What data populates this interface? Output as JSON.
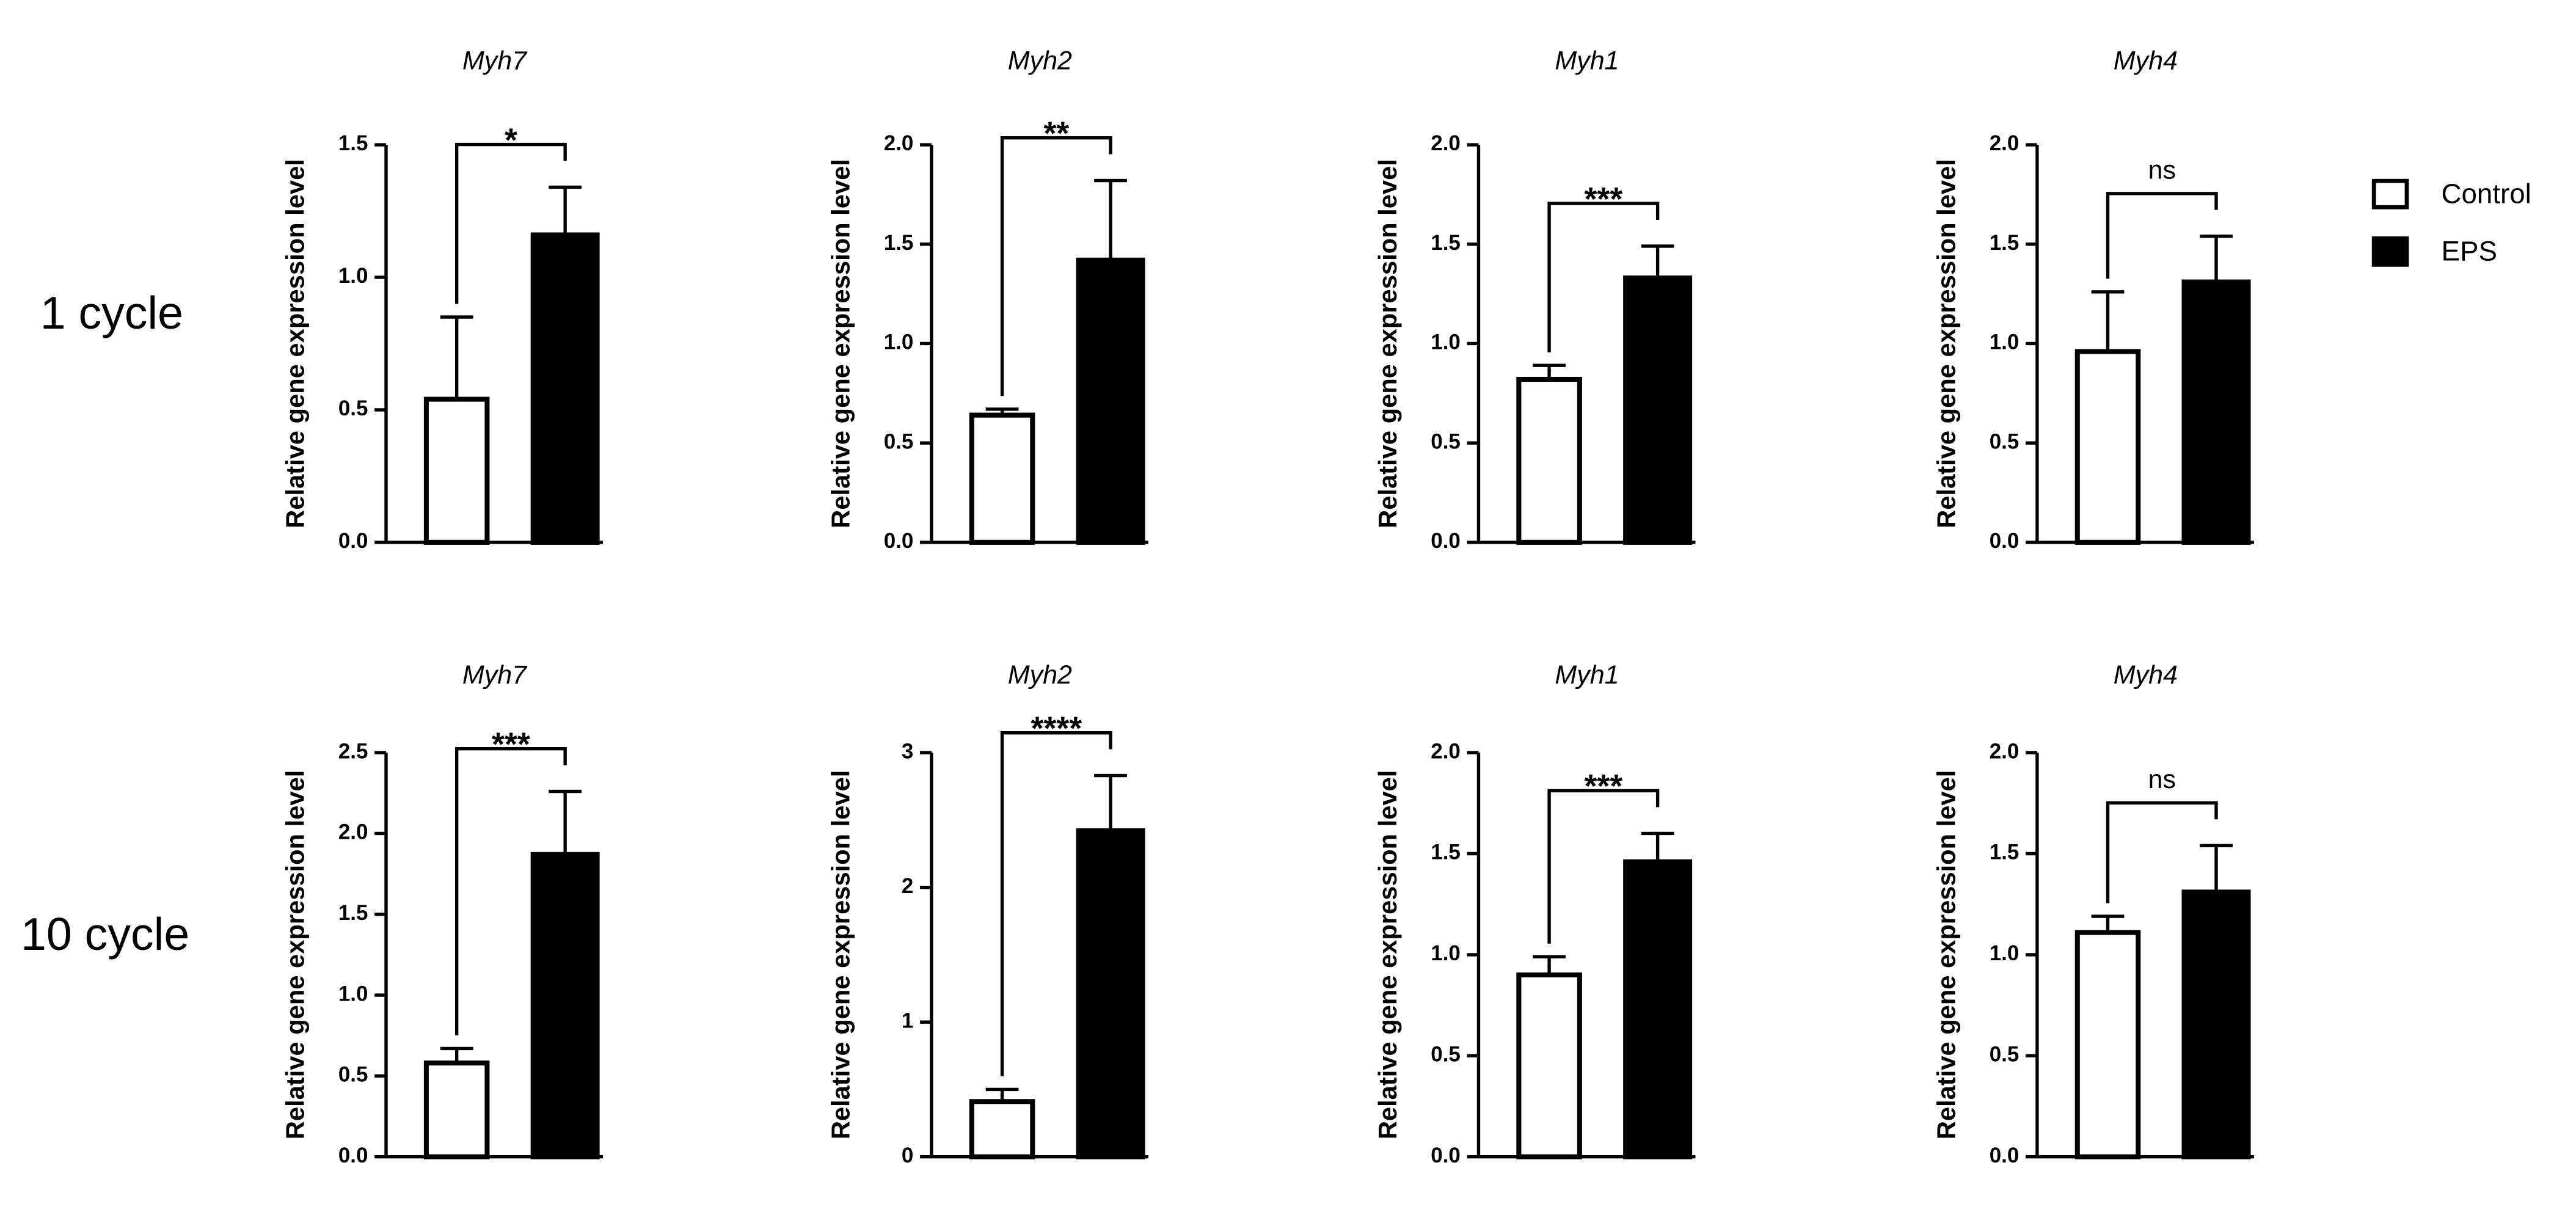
{
  "row_labels": [
    "1 cycle",
    "10 cycle"
  ],
  "chart_data": [
    {
      "type": "bar",
      "title": "Myh7",
      "ylabel": "Relative gene expression level",
      "annotation": "*",
      "ylim": [
        0,
        1.5
      ],
      "yticks": [
        {
          "value": 0,
          "label": "0.0"
        },
        {
          "value": 0.5,
          "label": "0.5"
        },
        {
          "value": 1,
          "label": "1.0"
        },
        {
          "value": 1.5,
          "label": "1.5"
        }
      ],
      "series": [
        {
          "name": "Control",
          "color": "#ffffff",
          "values": [
            0.54
          ],
          "errors": [
            0.31
          ]
        },
        {
          "name": "EPS",
          "color": "#000000",
          "values": [
            1.16
          ],
          "errors": [
            0.18
          ]
        }
      ]
    },
    {
      "type": "bar",
      "title": "Myh2",
      "ylabel": "Relative gene expression level",
      "annotation": "**",
      "ylim": [
        0,
        2
      ],
      "yticks": [
        {
          "value": 0,
          "label": "0.0"
        },
        {
          "value": 0.5,
          "label": "0.5"
        },
        {
          "value": 1,
          "label": "1.0"
        },
        {
          "value": 1.5,
          "label": "1.5"
        },
        {
          "value": 2,
          "label": "2.0"
        }
      ],
      "series": [
        {
          "name": "Control",
          "color": "#ffffff",
          "values": [
            0.64
          ],
          "errors": [
            0.03
          ]
        },
        {
          "name": "EPS",
          "color": "#000000",
          "values": [
            1.42
          ],
          "errors": [
            0.4
          ]
        }
      ]
    },
    {
      "type": "bar",
      "title": "Myh1",
      "ylabel": "Relative gene expression level",
      "annotation": "***",
      "ylim": [
        0,
        2
      ],
      "yticks": [
        {
          "value": 0,
          "label": "0.0"
        },
        {
          "value": 0.5,
          "label": "0.5"
        },
        {
          "value": 1,
          "label": "1.0"
        },
        {
          "value": 1.5,
          "label": "1.5"
        },
        {
          "value": 2,
          "label": "2.0"
        }
      ],
      "series": [
        {
          "name": "Control",
          "color": "#ffffff",
          "values": [
            0.82
          ],
          "errors": [
            0.07
          ]
        },
        {
          "name": "EPS",
          "color": "#000000",
          "values": [
            1.33
          ],
          "errors": [
            0.16
          ]
        }
      ]
    },
    {
      "type": "bar",
      "title": "Myh4",
      "ylabel": "Relative gene expression level",
      "annotation": "ns",
      "ylim": [
        0,
        2
      ],
      "yticks": [
        {
          "value": 0,
          "label": "0.0"
        },
        {
          "value": 0.5,
          "label": "0.5"
        },
        {
          "value": 1,
          "label": "1.0"
        },
        {
          "value": 1.5,
          "label": "1.5"
        },
        {
          "value": 2,
          "label": "2.0"
        }
      ],
      "series": [
        {
          "name": "Control",
          "color": "#ffffff",
          "values": [
            0.96
          ],
          "errors": [
            0.3
          ]
        },
        {
          "name": "EPS",
          "color": "#000000",
          "values": [
            1.31
          ],
          "errors": [
            0.23
          ]
        }
      ]
    },
    {
      "type": "bar",
      "title": "Myh7",
      "ylabel": "Relative gene expression level",
      "annotation": "***",
      "ylim": [
        0,
        2.5
      ],
      "yticks": [
        {
          "value": 0,
          "label": "0.0"
        },
        {
          "value": 0.5,
          "label": "0.5"
        },
        {
          "value": 1,
          "label": "1.0"
        },
        {
          "value": 1.5,
          "label": "1.5"
        },
        {
          "value": 2,
          "label": "2.0"
        },
        {
          "value": 2.5,
          "label": "2.5"
        }
      ],
      "series": [
        {
          "name": "Control",
          "color": "#ffffff",
          "values": [
            0.58
          ],
          "errors": [
            0.09
          ]
        },
        {
          "name": "EPS",
          "color": "#000000",
          "values": [
            1.87
          ],
          "errors": [
            0.39
          ]
        }
      ]
    },
    {
      "type": "bar",
      "title": "Myh2",
      "ylabel": "Relative gene expression level",
      "annotation": "****",
      "ylim": [
        0,
        3
      ],
      "yticks": [
        0,
        1,
        2,
        3
      ],
      "series": [
        {
          "name": "Control",
          "color": "#ffffff",
          "values": [
            0.41
          ],
          "errors": [
            0.09
          ]
        },
        {
          "name": "EPS",
          "color": "#000000",
          "values": [
            2.42
          ],
          "errors": [
            0.41
          ]
        }
      ]
    },
    {
      "type": "bar",
      "title": "Myh1",
      "ylabel": "Relative gene expression level",
      "annotation": "***",
      "ylim": [
        0,
        2
      ],
      "yticks": [
        {
          "value": 0,
          "label": "0.0"
        },
        {
          "value": 0.5,
          "label": "0.5"
        },
        {
          "value": 1,
          "label": "1.0"
        },
        {
          "value": 1.5,
          "label": "1.5"
        },
        {
          "value": 2,
          "label": "2.0"
        }
      ],
      "series": [
        {
          "name": "Control",
          "color": "#ffffff",
          "values": [
            0.9
          ],
          "errors": [
            0.09
          ]
        },
        {
          "name": "EPS",
          "color": "#000000",
          "values": [
            1.46
          ],
          "errors": [
            0.14
          ]
        }
      ]
    },
    {
      "type": "bar",
      "title": "Myh4",
      "ylabel": "Relative gene expression level",
      "annotation": "ns",
      "ylim": [
        0,
        2
      ],
      "yticks": [
        {
          "value": 0,
          "label": "0.0"
        },
        {
          "value": 0.5,
          "label": "0.5"
        },
        {
          "value": 1,
          "label": "1.0"
        },
        {
          "value": 1.5,
          "label": "1.5"
        },
        {
          "value": 2,
          "label": "2.0"
        }
      ],
      "series": [
        {
          "name": "Control",
          "color": "#ffffff",
          "values": [
            1.11
          ],
          "errors": [
            0.08
          ]
        },
        {
          "name": "EPS",
          "color": "#000000",
          "values": [
            1.31
          ],
          "errors": [
            0.23
          ]
        }
      ]
    }
  ]
}
